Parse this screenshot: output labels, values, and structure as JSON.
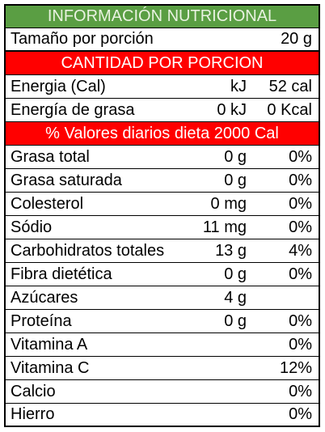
{
  "header": {
    "title": "INFORMACIÓN NUTRICIONAL"
  },
  "serving": {
    "label": "Tamaño por porción",
    "value": "20 g"
  },
  "section_amount": {
    "title": "CANTIDAD POR PORCION"
  },
  "energy_rows": [
    {
      "name": "Energia (Cal)",
      "mid": "kJ",
      "right": "52 cal"
    },
    {
      "name": "Energía de grasa",
      "mid": "0 kJ",
      "right": "0 Kcal"
    }
  ],
  "section_daily": {
    "title": "% Valores diarios dieta 2000 Cal"
  },
  "nutrients": [
    {
      "name": "Grasa total",
      "amount": "0 g",
      "percent": "0%"
    },
    {
      "name": "Grasa saturada",
      "amount": "0 g",
      "percent": "0%"
    },
    {
      "name": "Colesterol",
      "amount": "0 mg",
      "percent": "0%"
    },
    {
      "name": "Sódio",
      "amount": "11 mg",
      "percent": "0%"
    },
    {
      "name": "Carbohidratos totales",
      "amount": "13 g",
      "percent": "4%"
    },
    {
      "name": "Fibra dietética",
      "amount": "0 g",
      "percent": "0%"
    },
    {
      "name": "Azúcares",
      "amount": "4 g",
      "percent": ""
    },
    {
      "name": "Proteína",
      "amount": "0 g",
      "percent": "0%"
    },
    {
      "name": "Vitamina A",
      "amount": "",
      "percent": "0%"
    },
    {
      "name": "Vitamina C",
      "amount": "",
      "percent": "12%"
    },
    {
      "name": "Calcio",
      "amount": "",
      "percent": "0%"
    },
    {
      "name": "Hierro",
      "amount": "",
      "percent": "0%"
    }
  ],
  "colors": {
    "header_green": "#5a9e43",
    "band_red": "#ff0000"
  }
}
